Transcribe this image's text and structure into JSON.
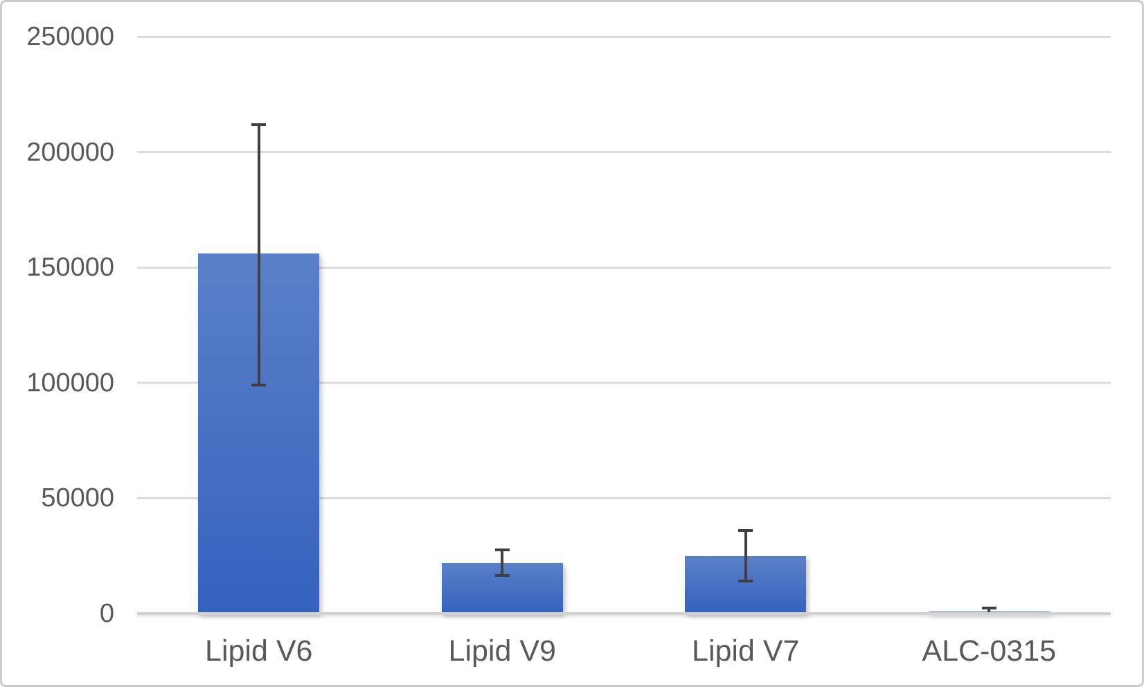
{
  "chart_data": {
    "type": "bar",
    "title": "",
    "xlabel": "",
    "ylabel": "",
    "categories": [
      "Lipid V6",
      "Lipid V9",
      "Lipid V7",
      "ALC-0315"
    ],
    "values": [
      156000,
      22000,
      25000,
      1000
    ],
    "error_low": [
      99000,
      16500,
      14000,
      0
    ],
    "error_high": [
      212000,
      27500,
      36000,
      2400
    ],
    "yticks": [
      "0",
      "50000",
      "100000",
      "150000",
      "200000",
      "250000"
    ],
    "ytick_values": [
      0,
      50000,
      100000,
      150000,
      200000,
      250000
    ],
    "ylim": [
      0,
      250000
    ],
    "grid": true,
    "legend": false,
    "legend_position": "none"
  },
  "style": {
    "bar_gradient_top": "#5b80c8",
    "bar_gradient_bottom": "#3462bd",
    "gridline_color": "#dcdcdc",
    "axis_line_color": "#d2d2d2",
    "error_bar_color": "#404040",
    "text_color": "#595959",
    "frame_border_color": "#cbcbcb",
    "background": "#ffffff"
  }
}
